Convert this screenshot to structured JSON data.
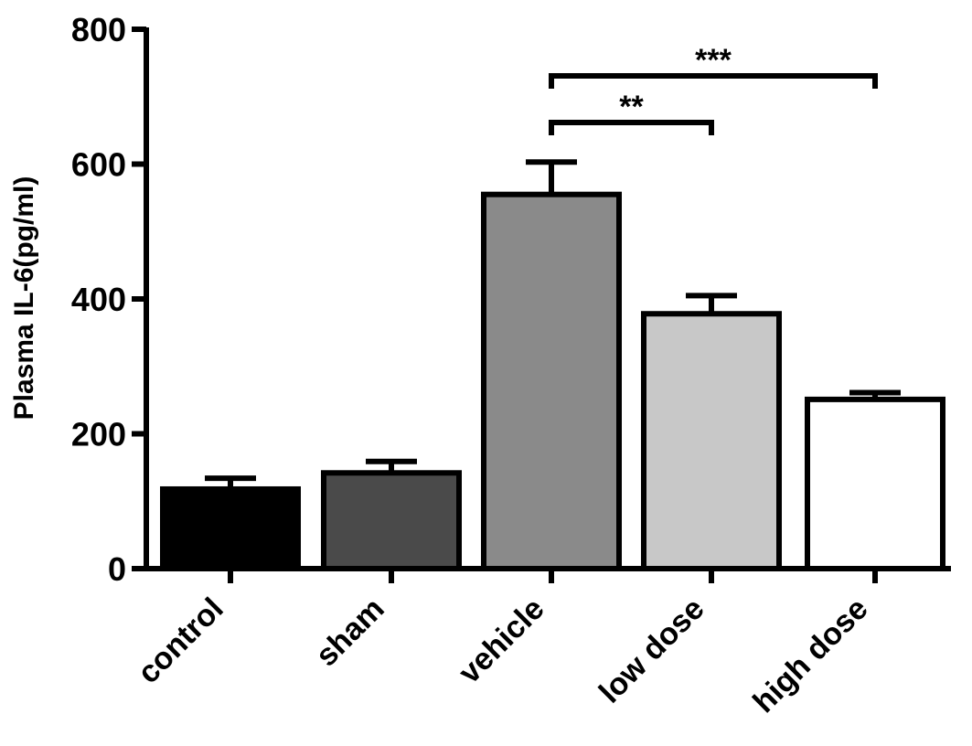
{
  "chart_data": {
    "type": "bar",
    "title": "",
    "xlabel": "",
    "ylabel": "Plasma IL-6(pg/ml)",
    "ylim": [
      0,
      800
    ],
    "yticks": [
      0,
      200,
      400,
      600,
      800
    ],
    "categories": [
      "control",
      "sham",
      "vehicle",
      "low dose",
      "high dose"
    ],
    "values": [
      118,
      142,
      555,
      378,
      251
    ],
    "errors": [
      16,
      17,
      48,
      27,
      10
    ],
    "colors": [
      "#000000",
      "#4a4a4a",
      "#8a8a8a",
      "#c8c8c8",
      "#ffffff"
    ],
    "grid": false,
    "significance": [
      {
        "from": 2,
        "to": 3,
        "label": "**"
      },
      {
        "from": 2,
        "to": 4,
        "label": "***"
      }
    ]
  }
}
